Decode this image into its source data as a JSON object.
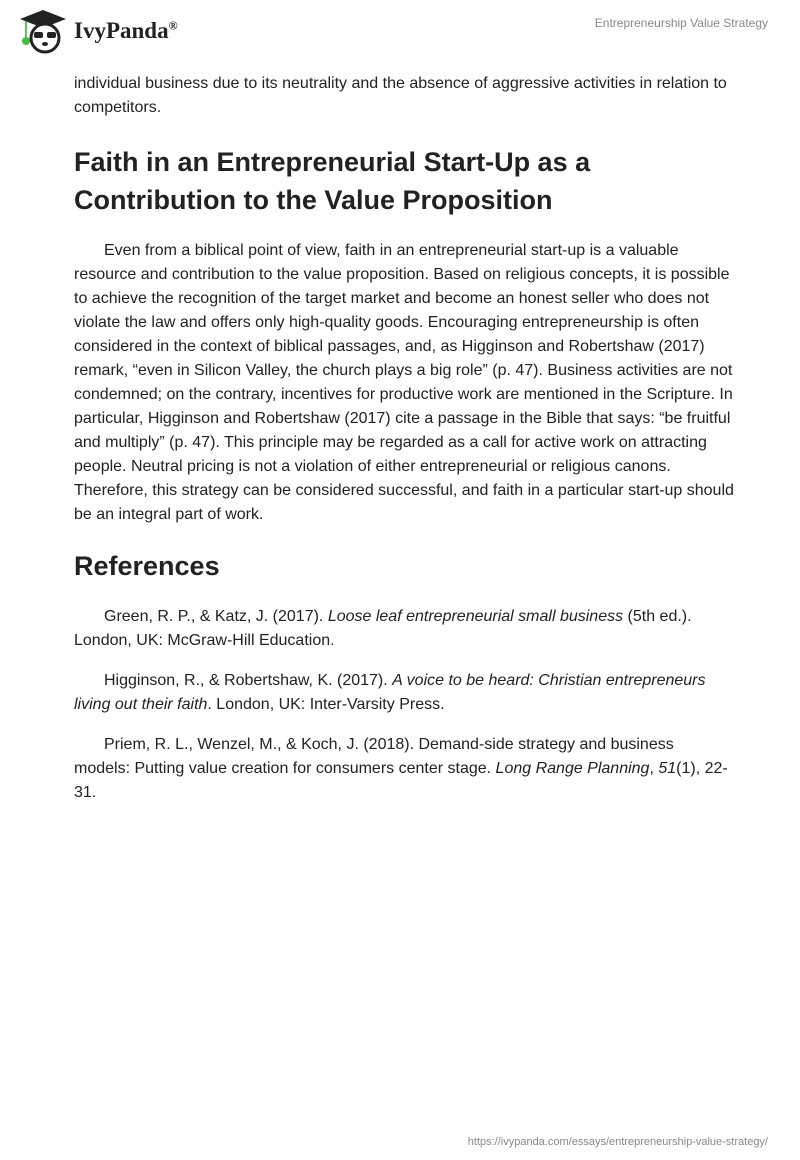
{
  "header": {
    "logo_text": "IvyPanda",
    "logo_mark": "®",
    "title": "Entrepreneurship Value Strategy"
  },
  "intro": "individual business due to its neutrality and the absence of aggressive activities in relation to competitors.",
  "section": {
    "heading": "Faith in an Entrepreneurial Start-Up as a Contribution to the Value Proposition",
    "body": "Even from a biblical point of view, faith in an entrepreneurial start-up is a valuable resource and contribution to the value proposition. Based on religious concepts, it is possible to achieve the recognition of the target market and become an honest seller who does not violate the law and offers only high-quality goods. Encouraging entrepreneurship is often considered in the context of biblical passages, and, as Higginson and Robertshaw (2017) remark, “even in Silicon Valley, the church plays a big role” (p. 47). Business activities are not condemned; on the contrary, incentives for productive work are mentioned in the Scripture. In particular, Higginson and Robertshaw (2017) cite a passage in the Bible that says: “be fruitful and multiply” (p. 47). This principle may be regarded as a call for active work on attracting people. Neutral pricing is not a violation of either entrepreneurial or religious canons. Therefore, this strategy can be considered successful, and faith in a particular start-up should be an integral part of work."
  },
  "references": {
    "heading": "References",
    "items": [
      {
        "a": "Green, R. P., & Katz, J. (2017). ",
        "i": "Loose leaf entrepreneurial small business",
        "b": " (5th ed.). London, UK: McGraw-Hill Education."
      },
      {
        "a": "Higginson, R., & Robertshaw, K. (2017). ",
        "i": "A voice to be heard: Christian entrepreneurs living out their faith",
        "b": ". London, UK: Inter-Varsity Press."
      },
      {
        "a": "Priem, R. L., Wenzel, M., & Koch, J. (2018). Demand-side strategy and business models: Putting value creation for consumers center stage. ",
        "i": "Long Range Planning",
        "b": ", ",
        "i2": "51",
        "c": "(1), 22-31."
      }
    ]
  },
  "footer": {
    "url": "https://ivypanda.com/essays/entrepreneurship-value-strategy/"
  }
}
